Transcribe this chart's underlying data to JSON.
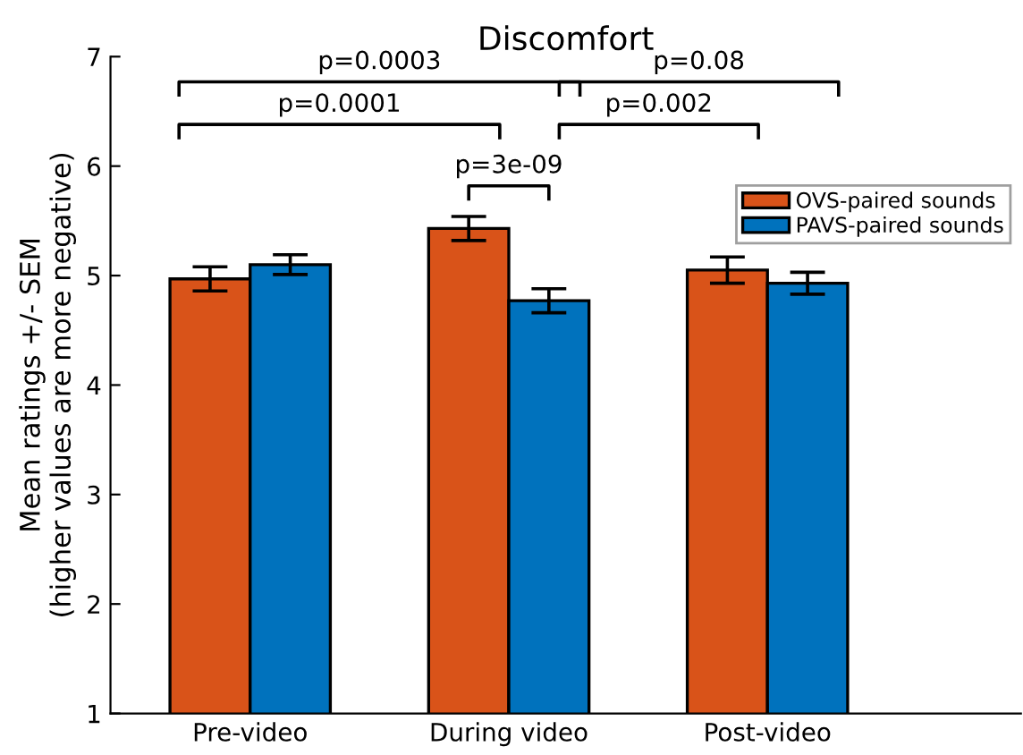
{
  "chart_data": {
    "type": "bar",
    "title": "Discomfort",
    "ylabel": "Mean ratings +/- SEM\n(higher values are more negative)",
    "categories": [
      "Pre-video",
      "During video",
      "Post-video"
    ],
    "series": [
      {
        "name": "OVS-paired sounds",
        "color": "#d95319",
        "values": [
          4.97,
          5.43,
          5.05
        ],
        "errors": [
          0.11,
          0.11,
          0.12
        ]
      },
      {
        "name": "PAVS-paired sounds",
        "color": "#0072bd",
        "values": [
          5.1,
          4.77,
          4.93
        ],
        "errors": [
          0.09,
          0.11,
          0.1
        ]
      }
    ],
    "ylim": [
      1,
      7
    ],
    "yticks": [
      1,
      2,
      3,
      4,
      5,
      6,
      7
    ],
    "grid": false,
    "legend": "top right",
    "annotations": [
      "p=0.0003",
      "p=0.08",
      "p=0.0001",
      "p=0.002",
      "p=3e-09"
    ]
  }
}
